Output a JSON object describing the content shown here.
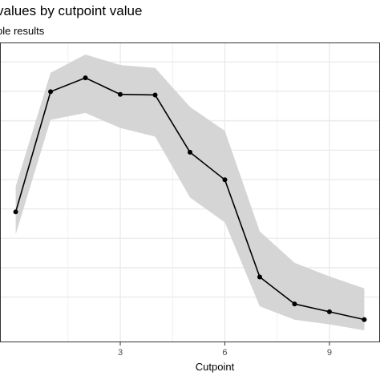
{
  "chart_data": {
    "type": "line",
    "title": "values by cutpoint value",
    "subtitle": "ple results",
    "xlabel": "Cutpoint",
    "ylabel": "",
    "xlim": [
      -0.45,
      10.45
    ],
    "ylim": [
      0,
      1
    ],
    "x_ticks": [
      3,
      6,
      9
    ],
    "x_tick_labels": [
      "3",
      "6",
      "9"
    ],
    "x_minor_gridlines": [
      1.5,
      4.5,
      7.5
    ],
    "y_gridlines": [
      0.935,
      0.837,
      0.739,
      0.641,
      0.543,
      0.445,
      0.347,
      0.249,
      0.151
    ],
    "grid": true,
    "legend": "none",
    "series": [
      {
        "x": [
          0,
          1,
          2,
          3,
          4,
          5,
          6,
          7,
          8,
          9,
          10
        ],
        "values": [
          0.435,
          0.836,
          0.882,
          0.827,
          0.825,
          0.634,
          0.542,
          0.218,
          0.128,
          0.102,
          0.076
        ],
        "lower": [
          0.36,
          0.742,
          0.765,
          0.715,
          0.686,
          0.483,
          0.4,
          0.12,
          0.075,
          0.06,
          0.04
        ],
        "upper": [
          0.52,
          0.899,
          0.96,
          0.925,
          0.915,
          0.785,
          0.705,
          0.37,
          0.265,
          0.22,
          0.18
        ]
      }
    ],
    "colors": {
      "line": "#000000",
      "ribbon": "#d3d3d3",
      "grid": "#ebebeb",
      "background": "#ffffff",
      "frame": "#333333"
    }
  }
}
